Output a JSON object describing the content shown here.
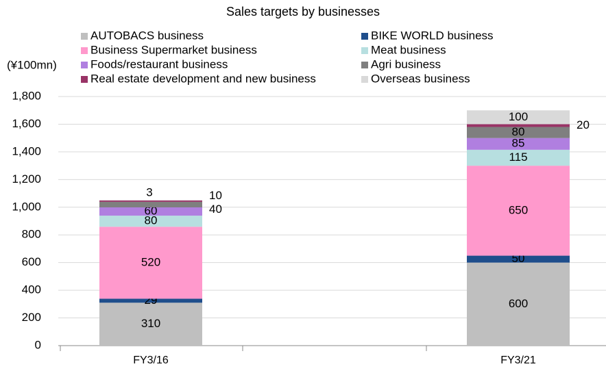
{
  "chart_data": {
    "type": "stacked_bar",
    "title": "Sales targets by businesses",
    "y_axis_label": "(¥100mn)",
    "categories": [
      "FY3/16",
      "FY3/21"
    ],
    "series": [
      {
        "name": "AUTOBACS business",
        "color": "#bfbfbf",
        "values": [
          310,
          600
        ]
      },
      {
        "name": "BIKE WORLD business",
        "color": "#1f4e8c",
        "values": [
          29,
          50
        ]
      },
      {
        "name": "Business Supermarket business",
        "color": "#ff99cc",
        "values": [
          520,
          650
        ]
      },
      {
        "name": "Meat business",
        "color": "#b7dfe0",
        "values": [
          80,
          115
        ]
      },
      {
        "name": "Foods/restaurant business",
        "color": "#b07fe0",
        "values": [
          60,
          85
        ]
      },
      {
        "name": "Agri business",
        "color": "#7f7f7f",
        "values": [
          40,
          80
        ]
      },
      {
        "name": "Real estate development and new business",
        "color": "#993366",
        "values": [
          10,
          20
        ]
      },
      {
        "name": "Overseas business",
        "color": "#d9d9d9",
        "values": [
          3,
          100
        ]
      }
    ],
    "ylim": [
      0,
      1800
    ],
    "yticks": [
      0,
      200,
      400,
      600,
      800,
      {
        "value": 1000,
        "label": "1,000"
      },
      {
        "value": 1200,
        "label": "1,200"
      },
      {
        "value": 1400,
        "label": "1,400"
      },
      {
        "value": 1600,
        "label": "1,600"
      },
      {
        "value": 1800,
        "label": "1,800"
      }
    ],
    "grid": true
  }
}
